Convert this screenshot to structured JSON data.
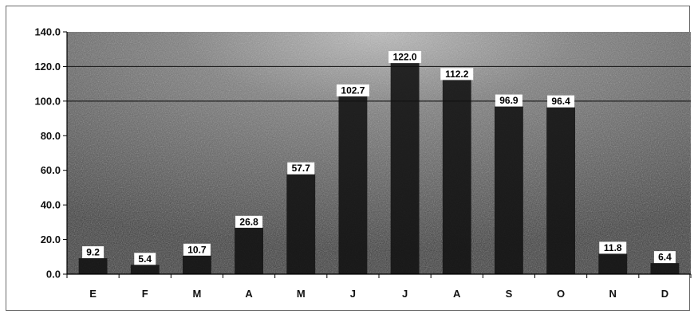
{
  "chart_data": {
    "type": "bar",
    "categories": [
      "E",
      "F",
      "M",
      "A",
      "M",
      "J",
      "J",
      "A",
      "S",
      "O",
      "N",
      "D"
    ],
    "values": [
      9.2,
      5.4,
      10.7,
      26.8,
      57.7,
      102.7,
      122.0,
      112.2,
      96.9,
      96.4,
      11.8,
      6.4
    ],
    "value_labels": [
      "9.2",
      "5.4",
      "10.7",
      "26.8",
      "57.7",
      "102.7",
      "122.0",
      "112.2",
      "96.9",
      "96.4",
      "11.8",
      "6.4"
    ],
    "ylim": [
      0,
      140
    ],
    "yticks": [
      0,
      20,
      40,
      60,
      80,
      100,
      120,
      140
    ],
    "ytick_labels": [
      "0.0",
      "20.0",
      "40.0",
      "60.0",
      "80.0",
      "100.0",
      "120.0",
      "140.0"
    ],
    "grid_lines_at": [
      100,
      120
    ],
    "legend": "none",
    "colors": {
      "plot_background": "#4a4a4a",
      "bar": "#111111",
      "label_box": "#ffffff",
      "gridline": "#222222"
    }
  }
}
